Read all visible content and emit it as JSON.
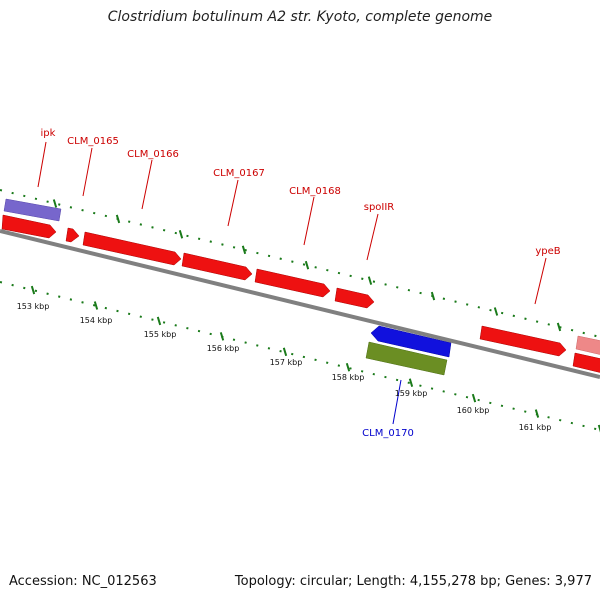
{
  "title": "Clostridium botulinum A2 str. Kyoto, complete genome",
  "footer": {
    "accession": "Accession: NC_012563",
    "summary": "Topology: circular; Length: 4,155,278 bp; Genes: 3,977"
  },
  "colors": {
    "forward_cds": "#ee1111",
    "forward_cds_light": "#ee8888",
    "reverse_cds": "#1111dd",
    "rna_feature": "#6b8e23",
    "purple_feature": "#7766cc",
    "label_forward": "#cc0000",
    "label_reverse": "#0000cc",
    "tick_green": "#1a7a1a",
    "backbone": "#808080"
  },
  "gene_labels": [
    {
      "text": "ipk",
      "strand": "forward"
    },
    {
      "text": "CLM_0165",
      "strand": "forward"
    },
    {
      "text": "CLM_0166",
      "strand": "forward"
    },
    {
      "text": "CLM_0167",
      "strand": "forward"
    },
    {
      "text": "CLM_0168",
      "strand": "forward"
    },
    {
      "text": "spoIIR",
      "strand": "forward"
    },
    {
      "text": "ypeB",
      "strand": "forward"
    },
    {
      "text": "CLM_0170",
      "strand": "reverse"
    }
  ],
  "scale_labels": [
    "153 kbp",
    "154 kbp",
    "155 kbp",
    "156 kbp",
    "157 kbp",
    "158 kbp",
    "159 kbp",
    "160 kbp",
    "161 kbp"
  ]
}
